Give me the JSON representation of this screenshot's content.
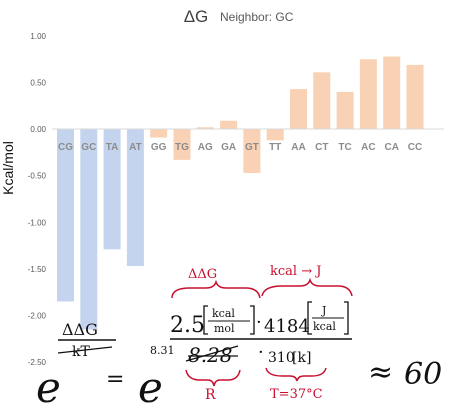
{
  "chart_data": {
    "type": "bar",
    "title": "ΔG",
    "subtitle": "Neighbor: GC",
    "xlabel": "",
    "ylabel": "Kcal/mol",
    "ylim": [
      -2.5,
      1.0
    ],
    "yticks": [
      "1.00",
      "0.50",
      "0.00",
      "-0.50",
      "-1.00",
      "-1.50",
      "-2.00",
      "-2.50"
    ],
    "ytick_values": [
      1.0,
      0.5,
      0.0,
      -0.5,
      -1.0,
      -1.5,
      -2.0,
      -2.5
    ],
    "grid": false,
    "legend": "none",
    "categories": [
      "CG",
      "GC",
      "TA",
      "AT",
      "GG",
      "TG",
      "AG",
      "GA",
      "GT",
      "TT",
      "AA",
      "CT",
      "TC",
      "AC",
      "CA",
      "CC"
    ],
    "values": [
      -1.85,
      -2.15,
      -1.29,
      -1.47,
      -0.09,
      -0.33,
      0.02,
      0.09,
      -0.47,
      -0.12,
      0.43,
      0.61,
      0.4,
      0.75,
      0.78,
      0.69
    ],
    "colors": {
      "negative": "#c5d4ee",
      "positive": "#f9d1b4",
      "tick_label": "#8c8c8c",
      "axis": "#d9d9d9",
      "title": "#404040"
    }
  },
  "annotations": {
    "delta_ddg": "ΔΔG",
    "kcal_to_j": "kcal → J",
    "exp_numerator": "ΔΔG",
    "exp_denominator": "kT",
    "e_left": "e",
    "equals": "=",
    "e_right": "e",
    "num_value": "2.5",
    "unit_kcal_mol_top": "kcal",
    "unit_kcal_mol_bottom": "mol",
    "times1": "·",
    "conv_factor": "4184",
    "unit_j_top": "J",
    "unit_j_bottom": "kcal",
    "r_value_written": "8.31",
    "r_value_struck": "8.28",
    "times2": "·",
    "temp_value": "310",
    "temp_unit": "[k]",
    "r_label": "R",
    "temp_label": "T=37°C",
    "approx": "≈",
    "result": "60"
  }
}
